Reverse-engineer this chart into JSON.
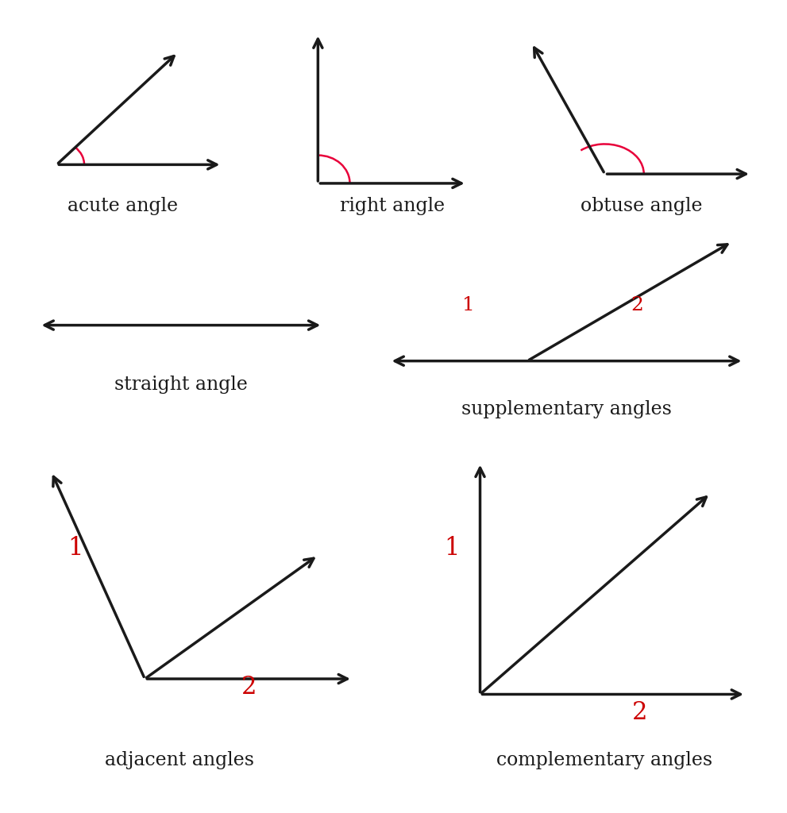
{
  "bg_color": "#ffffff",
  "line_color": "#1a1a1a",
  "arc_color": "#e8003a",
  "label_color": "#1a1a1a",
  "number_color": "#cc0000",
  "font_size_label": 17,
  "font_size_number": 18,
  "labels": {
    "acute": "acute angle",
    "right": "right angle",
    "obtuse": "obtuse angle",
    "straight": "straight angle",
    "supplementary": "supplementary angles",
    "adjacent": "adjacent angles",
    "complementary": "complementary angles"
  }
}
